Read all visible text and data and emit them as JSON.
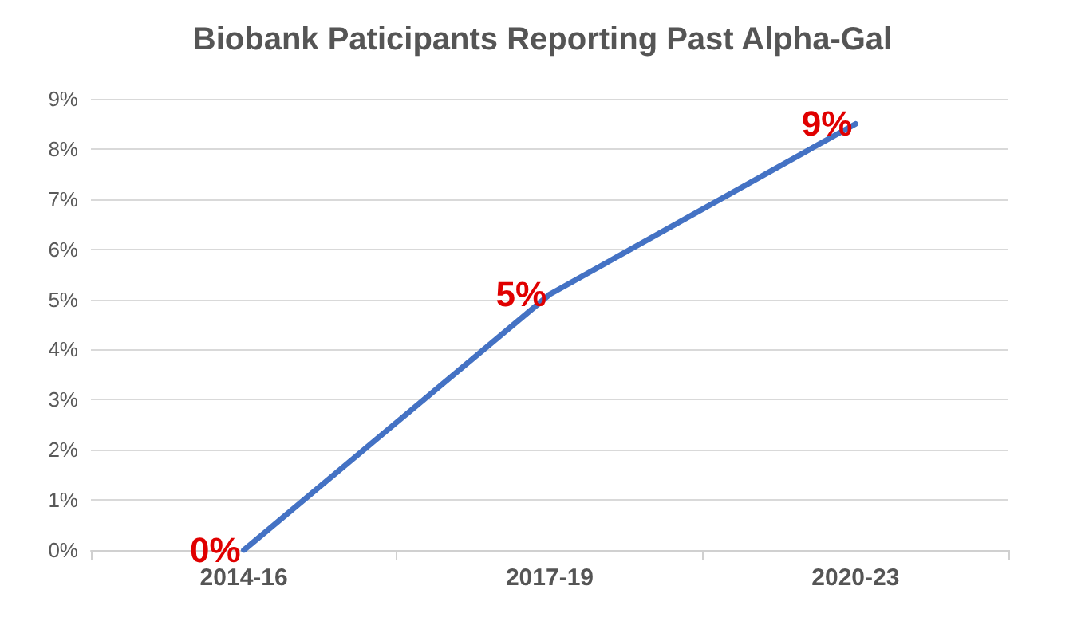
{
  "chart_data": {
    "type": "line",
    "title": "Biobank Paticipants Reporting Past Alpha-Gal",
    "categories": [
      "2014-16",
      "2017-19",
      "2020-23"
    ],
    "series": [
      {
        "color": "#4472c4",
        "values": [
          0,
          5.1,
          8.5
        ],
        "value_labels": [
          "0%",
          "5%",
          "9%"
        ]
      }
    ],
    "ylim": [
      0,
      9
    ],
    "yticks": [
      {
        "value": 0,
        "label": "0%"
      },
      {
        "value": 1,
        "label": "1%"
      },
      {
        "value": 2,
        "label": "2%"
      },
      {
        "value": 3,
        "label": "3%"
      },
      {
        "value": 4,
        "label": "4%"
      },
      {
        "value": 5,
        "label": "5%"
      },
      {
        "value": 6,
        "label": "6%"
      },
      {
        "value": 7,
        "label": "7%"
      },
      {
        "value": 8,
        "label": "8%"
      },
      {
        "value": 9,
        "label": "9%"
      }
    ],
    "grid": "y",
    "marker": "none",
    "line_style": "solid"
  }
}
